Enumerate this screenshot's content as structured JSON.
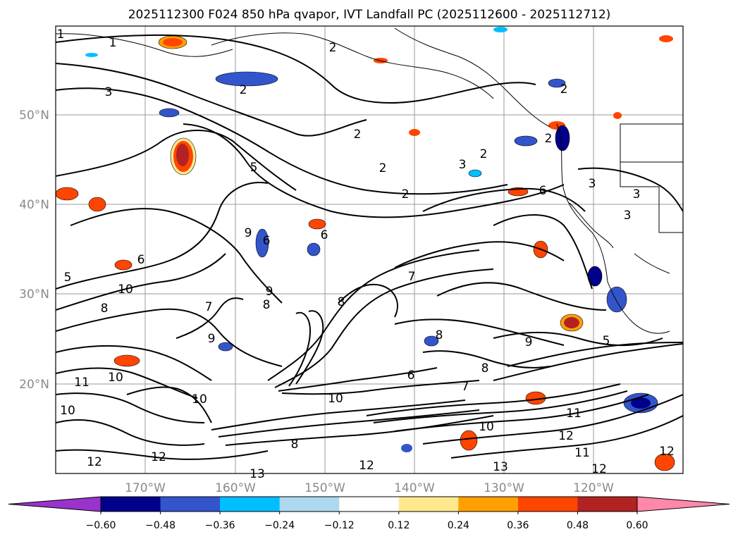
{
  "figure": {
    "title": "2025112300 F024 850 hPa qvapor, IVT Landfall PC (2025112600 - 2025112712)",
    "longitude_labels": [
      "170°W",
      "160°W",
      "150°W",
      "140°W",
      "130°W",
      "120°W"
    ],
    "latitude_labels": [
      "50°N",
      "40°N",
      "30°N",
      "20°N"
    ],
    "gridlines": true,
    "contour_labels": [
      "1",
      "1",
      "2",
      "2",
      "2",
      "2",
      "2",
      "2",
      "2",
      "2",
      "3",
      "3",
      "3",
      "3",
      "3",
      "5",
      "5",
      "5",
      "6",
      "6",
      "6",
      "6",
      "6",
      "7",
      "7",
      "7",
      "8",
      "8",
      "8",
      "8",
      "8",
      "8",
      "9",
      "9",
      "9",
      "9",
      "10",
      "10",
      "10",
      "10",
      "10",
      "10",
      "11",
      "11",
      "11",
      "12",
      "12",
      "12",
      "12",
      "12",
      "12",
      "13",
      "13"
    ]
  },
  "colorbar": {
    "tick_labels": [
      "−0.60",
      "−0.48",
      "−0.36",
      "−0.24",
      "−0.12",
      "0.12",
      "0.24",
      "0.36",
      "0.48",
      "0.60"
    ],
    "colors": [
      "#9933cc",
      "#00008b",
      "#3355cc",
      "#00bfff",
      "#add8f0",
      "#ffffff",
      "#ffe98c",
      "#ffa000",
      "#ff4500",
      "#b22222",
      "#ff88aa"
    ],
    "extend": "both"
  },
  "colors": {
    "contour": "#000000",
    "coastline": "#000000",
    "grid": "#999999",
    "axis_text": "#8a8a8a"
  }
}
